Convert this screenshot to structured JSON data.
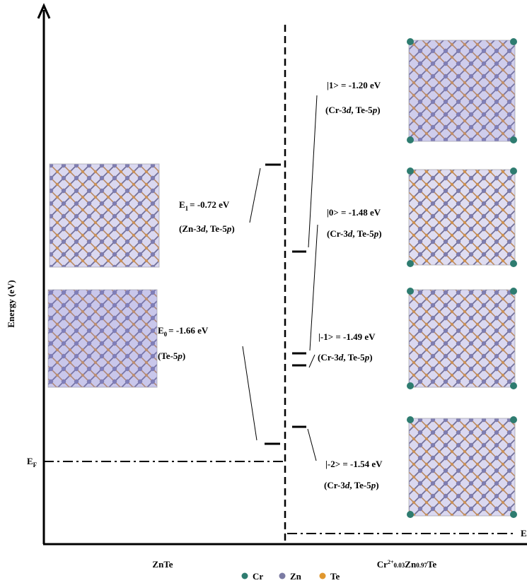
{
  "axis_label": "Energy (eV)",
  "fermi_left": {
    "symbol": "E",
    "sub": "F"
  },
  "fermi_right": "E",
  "left_label": "ZnTe",
  "right_label": [
    "Cr",
    "2+",
    "0.03",
    "Zn",
    "0.97",
    "Te"
  ],
  "legend": [
    "Cr",
    "Zn",
    "Te"
  ],
  "left_levels": [
    {
      "symbol": "E",
      "sub": "1",
      "energy": "= -0.72 eV",
      "orbitals": [
        "(Zn-3",
        "d",
        ", Te-5",
        "p",
        ")"
      ]
    },
    {
      "symbol": "E",
      "sub": "0",
      "energy": "= -1.66 eV",
      "orbitals": [
        "(Te-5",
        "p",
        ")"
      ]
    }
  ],
  "right_levels": [
    {
      "state": "|1> = -1.20 eV",
      "orbitals": [
        "(Cr-3",
        "d",
        ", Te-5",
        "p",
        ")"
      ]
    },
    {
      "state": "|0> = -1.48 eV",
      "orbitals": [
        "(Cr-3",
        "d",
        ", Te-5",
        "p",
        ")"
      ]
    },
    {
      "state": "|-1> = -1.49 eV",
      "orbitals": [
        "(Cr-3",
        "d",
        ", Te-5",
        "p",
        ")"
      ]
    },
    {
      "state": "|-2> = -1.54 eV",
      "orbitals": [
        "(Cr-3",
        "d",
        ", Te-5",
        "p",
        ")"
      ]
    }
  ]
}
